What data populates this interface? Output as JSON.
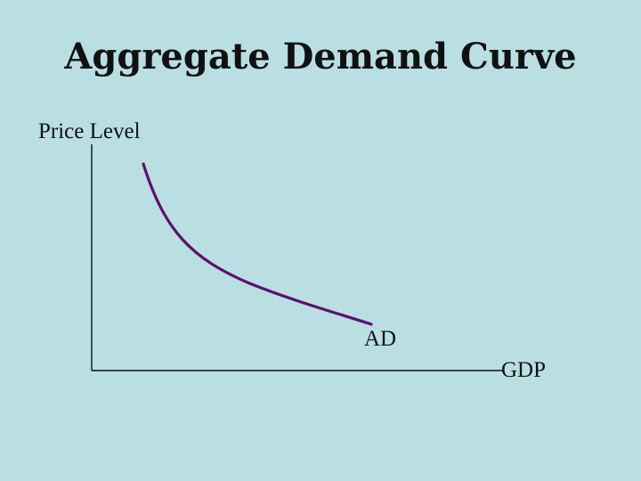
{
  "slide": {
    "title": "Aggregate Demand Curve",
    "background_color": "#b9dfe3"
  },
  "diagram": {
    "y_axis_label": "Price Level",
    "x_axis_label": "GDP",
    "curve_label": "AD",
    "curve_color": "#5e0f6e",
    "axis_color": "#111111"
  }
}
